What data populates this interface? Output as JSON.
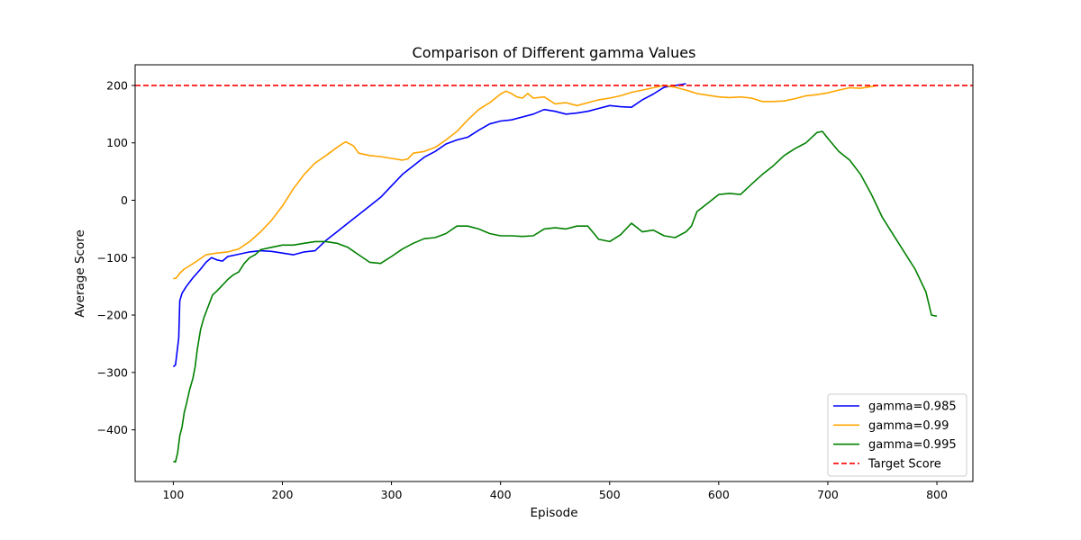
{
  "chart_data": {
    "type": "line",
    "title": "Comparison of Different gamma Values",
    "xlabel": "Episode",
    "ylabel": "Average Score",
    "xlim": [
      65,
      833
    ],
    "ylim": [
      -490,
      236
    ],
    "xticks": [
      100,
      200,
      300,
      400,
      500,
      600,
      700,
      800
    ],
    "yticks": [
      -400,
      -300,
      -200,
      -100,
      0,
      100,
      200
    ],
    "grid": false,
    "legend_position": "lower-right",
    "target": {
      "name": "Target Score",
      "value": 200,
      "color": "#ff0000"
    },
    "series": [
      {
        "name": "gamma=0.985",
        "color": "#0000ff",
        "points": [
          [
            100,
            -290
          ],
          [
            102,
            -287
          ],
          [
            105,
            -240
          ],
          [
            106,
            -175
          ],
          [
            108,
            -162
          ],
          [
            112,
            -150
          ],
          [
            118,
            -135
          ],
          [
            125,
            -120
          ],
          [
            130,
            -108
          ],
          [
            135,
            -100
          ],
          [
            140,
            -104
          ],
          [
            145,
            -106
          ],
          [
            150,
            -98
          ],
          [
            160,
            -94
          ],
          [
            170,
            -90
          ],
          [
            180,
            -88
          ],
          [
            190,
            -89
          ],
          [
            200,
            -92
          ],
          [
            210,
            -95
          ],
          [
            220,
            -90
          ],
          [
            230,
            -88
          ],
          [
            240,
            -70
          ],
          [
            250,
            -55
          ],
          [
            260,
            -40
          ],
          [
            270,
            -25
          ],
          [
            280,
            -10
          ],
          [
            290,
            5
          ],
          [
            300,
            25
          ],
          [
            310,
            45
          ],
          [
            320,
            60
          ],
          [
            330,
            75
          ],
          [
            340,
            85
          ],
          [
            350,
            98
          ],
          [
            360,
            105
          ],
          [
            370,
            110
          ],
          [
            380,
            122
          ],
          [
            390,
            133
          ],
          [
            400,
            138
          ],
          [
            410,
            140
          ],
          [
            420,
            145
          ],
          [
            430,
            150
          ],
          [
            440,
            158
          ],
          [
            450,
            155
          ],
          [
            460,
            150
          ],
          [
            470,
            152
          ],
          [
            480,
            155
          ],
          [
            490,
            160
          ],
          [
            500,
            165
          ],
          [
            510,
            163
          ],
          [
            520,
            162
          ],
          [
            530,
            175
          ],
          [
            540,
            185
          ],
          [
            550,
            197
          ],
          [
            560,
            200
          ],
          [
            570,
            203
          ]
        ]
      },
      {
        "name": "gamma=0.99",
        "color": "#ffa500",
        "points": [
          [
            100,
            -137
          ],
          [
            103,
            -135
          ],
          [
            106,
            -127
          ],
          [
            110,
            -120
          ],
          [
            120,
            -108
          ],
          [
            130,
            -95
          ],
          [
            140,
            -92
          ],
          [
            150,
            -90
          ],
          [
            160,
            -85
          ],
          [
            170,
            -72
          ],
          [
            180,
            -55
          ],
          [
            190,
            -35
          ],
          [
            200,
            -10
          ],
          [
            210,
            20
          ],
          [
            220,
            45
          ],
          [
            230,
            65
          ],
          [
            240,
            78
          ],
          [
            250,
            92
          ],
          [
            258,
            102
          ],
          [
            265,
            95
          ],
          [
            270,
            82
          ],
          [
            280,
            78
          ],
          [
            290,
            76
          ],
          [
            300,
            73
          ],
          [
            310,
            70
          ],
          [
            315,
            72
          ],
          [
            320,
            82
          ],
          [
            330,
            85
          ],
          [
            340,
            92
          ],
          [
            350,
            105
          ],
          [
            360,
            120
          ],
          [
            370,
            140
          ],
          [
            380,
            158
          ],
          [
            390,
            170
          ],
          [
            400,
            185
          ],
          [
            405,
            190
          ],
          [
            410,
            186
          ],
          [
            415,
            180
          ],
          [
            420,
            178
          ],
          [
            425,
            186
          ],
          [
            430,
            178
          ],
          [
            440,
            180
          ],
          [
            450,
            168
          ],
          [
            460,
            170
          ],
          [
            470,
            165
          ],
          [
            480,
            170
          ],
          [
            490,
            175
          ],
          [
            500,
            178
          ],
          [
            510,
            182
          ],
          [
            520,
            188
          ],
          [
            530,
            192
          ],
          [
            540,
            196
          ],
          [
            550,
            200
          ],
          [
            560,
            197
          ],
          [
            570,
            192
          ],
          [
            580,
            186
          ],
          [
            590,
            183
          ],
          [
            600,
            180
          ],
          [
            610,
            179
          ],
          [
            620,
            180
          ],
          [
            630,
            178
          ],
          [
            640,
            172
          ],
          [
            650,
            172
          ],
          [
            660,
            173
          ],
          [
            670,
            177
          ],
          [
            680,
            182
          ],
          [
            690,
            184
          ],
          [
            700,
            187
          ],
          [
            710,
            192
          ],
          [
            720,
            196
          ],
          [
            730,
            195
          ],
          [
            740,
            198
          ],
          [
            746,
            200
          ]
        ]
      },
      {
        "name": "gamma=0.995",
        "color": "#008000",
        "points": [
          [
            100,
            -455
          ],
          [
            102,
            -456
          ],
          [
            104,
            -440
          ],
          [
            106,
            -410
          ],
          [
            108,
            -395
          ],
          [
            110,
            -370
          ],
          [
            112,
            -355
          ],
          [
            115,
            -330
          ],
          [
            118,
            -310
          ],
          [
            120,
            -290
          ],
          [
            122,
            -260
          ],
          [
            125,
            -225
          ],
          [
            128,
            -205
          ],
          [
            132,
            -185
          ],
          [
            136,
            -165
          ],
          [
            140,
            -158
          ],
          [
            145,
            -148
          ],
          [
            150,
            -138
          ],
          [
            155,
            -130
          ],
          [
            160,
            -125
          ],
          [
            165,
            -110
          ],
          [
            170,
            -100
          ],
          [
            175,
            -95
          ],
          [
            180,
            -86
          ],
          [
            190,
            -82
          ],
          [
            200,
            -78
          ],
          [
            210,
            -78
          ],
          [
            220,
            -75
          ],
          [
            230,
            -72
          ],
          [
            240,
            -72
          ],
          [
            250,
            -75
          ],
          [
            260,
            -82
          ],
          [
            270,
            -95
          ],
          [
            280,
            -108
          ],
          [
            290,
            -110
          ],
          [
            300,
            -98
          ],
          [
            310,
            -85
          ],
          [
            320,
            -75
          ],
          [
            330,
            -67
          ],
          [
            340,
            -65
          ],
          [
            350,
            -58
          ],
          [
            360,
            -45
          ],
          [
            370,
            -45
          ],
          [
            380,
            -50
          ],
          [
            390,
            -58
          ],
          [
            400,
            -62
          ],
          [
            410,
            -62
          ],
          [
            420,
            -63
          ],
          [
            430,
            -62
          ],
          [
            440,
            -50
          ],
          [
            450,
            -48
          ],
          [
            460,
            -50
          ],
          [
            470,
            -45
          ],
          [
            480,
            -45
          ],
          [
            490,
            -68
          ],
          [
            500,
            -72
          ],
          [
            510,
            -60
          ],
          [
            520,
            -40
          ],
          [
            530,
            -55
          ],
          [
            540,
            -52
          ],
          [
            550,
            -62
          ],
          [
            560,
            -65
          ],
          [
            570,
            -55
          ],
          [
            575,
            -45
          ],
          [
            580,
            -20
          ],
          [
            590,
            -5
          ],
          [
            600,
            10
          ],
          [
            610,
            12
          ],
          [
            620,
            10
          ],
          [
            630,
            28
          ],
          [
            640,
            45
          ],
          [
            650,
            60
          ],
          [
            660,
            78
          ],
          [
            670,
            90
          ],
          [
            680,
            100
          ],
          [
            690,
            118
          ],
          [
            695,
            120
          ],
          [
            700,
            108
          ],
          [
            710,
            85
          ],
          [
            720,
            70
          ],
          [
            730,
            45
          ],
          [
            740,
            10
          ],
          [
            750,
            -30
          ],
          [
            760,
            -60
          ],
          [
            770,
            -90
          ],
          [
            780,
            -120
          ],
          [
            790,
            -160
          ],
          [
            795,
            -200
          ],
          [
            800,
            -202
          ]
        ]
      }
    ]
  }
}
